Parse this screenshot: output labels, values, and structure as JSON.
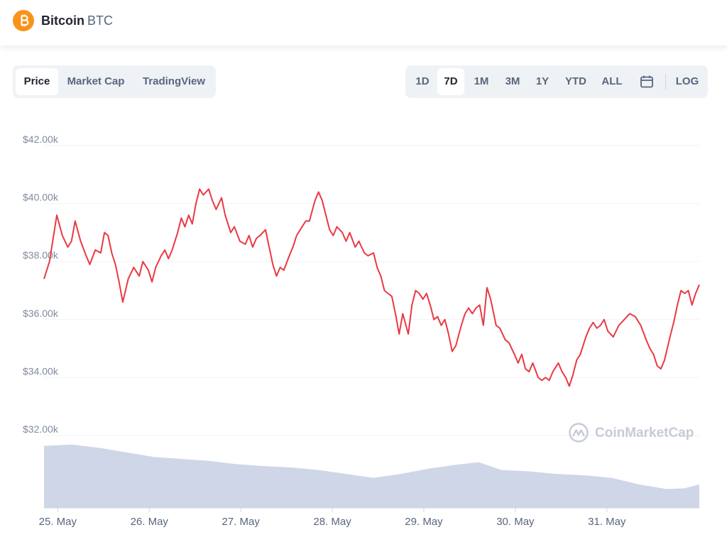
{
  "header": {
    "coin_name": "Bitcoin",
    "coin_symbol": "BTC"
  },
  "chart_tabs": [
    "Price",
    "Market Cap",
    "TradingView"
  ],
  "active_chart_tab": "Price",
  "range_tabs": [
    "1D",
    "7D",
    "1M",
    "3M",
    "1Y",
    "YTD",
    "ALL"
  ],
  "active_range_tab": "7D",
  "log_label": "LOG",
  "watermark": "CoinMarketCap",
  "colors": {
    "line": "#ea3943",
    "volume": "#cfd6e7",
    "accent": "#f7931a"
  },
  "icons": {
    "coin": "bitcoin-logo-icon",
    "calendar": "calendar-icon",
    "watermark": "coinmarketcap-logo-icon"
  },
  "chart_data": {
    "type": "line",
    "ylim": [
      32000,
      42000
    ],
    "y_ticks": [
      32000,
      34000,
      36000,
      38000,
      40000,
      42000
    ],
    "y_tick_labels": [
      "$32.00k",
      "$34.00k",
      "$36.00k",
      "$38.00k",
      "$40.00k",
      "$42.00k"
    ],
    "x_range": [
      0,
      7
    ],
    "x_ticks": [
      0.15,
      1.15,
      2.15,
      3.15,
      4.15,
      5.15,
      6.15
    ],
    "x_tick_labels": [
      "25. May",
      "26. May",
      "27. May",
      "28. May",
      "29. May",
      "30. May",
      "31. May"
    ],
    "series": [
      {
        "values": [
          [
            0.0,
            37400
          ],
          [
            0.06,
            38000
          ],
          [
            0.14,
            39600
          ],
          [
            0.2,
            38900
          ],
          [
            0.26,
            38500
          ],
          [
            0.3,
            38700
          ],
          [
            0.34,
            39400
          ],
          [
            0.4,
            38700
          ],
          [
            0.46,
            38200
          ],
          [
            0.5,
            37900
          ],
          [
            0.56,
            38400
          ],
          [
            0.62,
            38300
          ],
          [
            0.66,
            39000
          ],
          [
            0.7,
            38900
          ],
          [
            0.74,
            38300
          ],
          [
            0.78,
            37900
          ],
          [
            0.82,
            37300
          ],
          [
            0.86,
            36600
          ],
          [
            0.92,
            37400
          ],
          [
            0.98,
            37800
          ],
          [
            1.04,
            37500
          ],
          [
            1.08,
            38000
          ],
          [
            1.14,
            37700
          ],
          [
            1.18,
            37300
          ],
          [
            1.22,
            37800
          ],
          [
            1.28,
            38200
          ],
          [
            1.32,
            38400
          ],
          [
            1.36,
            38100
          ],
          [
            1.4,
            38400
          ],
          [
            1.46,
            39000
          ],
          [
            1.5,
            39500
          ],
          [
            1.54,
            39200
          ],
          [
            1.58,
            39600
          ],
          [
            1.62,
            39300
          ],
          [
            1.66,
            40000
          ],
          [
            1.7,
            40500
          ],
          [
            1.74,
            40300
          ],
          [
            1.8,
            40500
          ],
          [
            1.84,
            40100
          ],
          [
            1.88,
            39800
          ],
          [
            1.94,
            40200
          ],
          [
            1.98,
            39600
          ],
          [
            2.04,
            39000
          ],
          [
            2.08,
            39200
          ],
          [
            2.14,
            38700
          ],
          [
            2.2,
            38600
          ],
          [
            2.24,
            38900
          ],
          [
            2.28,
            38500
          ],
          [
            2.32,
            38800
          ],
          [
            2.36,
            38900
          ],
          [
            2.42,
            39100
          ],
          [
            2.46,
            38500
          ],
          [
            2.5,
            37900
          ],
          [
            2.54,
            37500
          ],
          [
            2.58,
            37800
          ],
          [
            2.62,
            37700
          ],
          [
            2.68,
            38200
          ],
          [
            2.72,
            38500
          ],
          [
            2.76,
            38900
          ],
          [
            2.82,
            39200
          ],
          [
            2.86,
            39400
          ],
          [
            2.9,
            39400
          ],
          [
            2.96,
            40100
          ],
          [
            3.0,
            40400
          ],
          [
            3.04,
            40100
          ],
          [
            3.08,
            39600
          ],
          [
            3.12,
            39100
          ],
          [
            3.16,
            38900
          ],
          [
            3.2,
            39200
          ],
          [
            3.26,
            39000
          ],
          [
            3.3,
            38700
          ],
          [
            3.34,
            39000
          ],
          [
            3.4,
            38500
          ],
          [
            3.44,
            38700
          ],
          [
            3.5,
            38300
          ],
          [
            3.54,
            38200
          ],
          [
            3.6,
            38300
          ],
          [
            3.64,
            37800
          ],
          [
            3.68,
            37500
          ],
          [
            3.72,
            37000
          ],
          [
            3.76,
            36900
          ],
          [
            3.8,
            36800
          ],
          [
            3.84,
            36200
          ],
          [
            3.88,
            35500
          ],
          [
            3.92,
            36200
          ],
          [
            3.98,
            35500
          ],
          [
            4.02,
            36500
          ],
          [
            4.06,
            37000
          ],
          [
            4.1,
            36900
          ],
          [
            4.14,
            36700
          ],
          [
            4.18,
            36900
          ],
          [
            4.22,
            36500
          ],
          [
            4.26,
            36000
          ],
          [
            4.3,
            36100
          ],
          [
            4.34,
            35800
          ],
          [
            4.38,
            36000
          ],
          [
            4.42,
            35500
          ],
          [
            4.46,
            34900
          ],
          [
            4.5,
            35100
          ],
          [
            4.56,
            35800
          ],
          [
            4.6,
            36200
          ],
          [
            4.64,
            36400
          ],
          [
            4.68,
            36200
          ],
          [
            4.72,
            36400
          ],
          [
            4.76,
            36500
          ],
          [
            4.8,
            35800
          ],
          [
            4.84,
            37100
          ],
          [
            4.88,
            36700
          ],
          [
            4.94,
            35800
          ],
          [
            4.98,
            35700
          ],
          [
            5.04,
            35300
          ],
          [
            5.08,
            35200
          ],
          [
            5.14,
            34800
          ],
          [
            5.18,
            34500
          ],
          [
            5.22,
            34800
          ],
          [
            5.26,
            34300
          ],
          [
            5.3,
            34200
          ],
          [
            5.34,
            34500
          ],
          [
            5.4,
            34000
          ],
          [
            5.44,
            33900
          ],
          [
            5.48,
            34000
          ],
          [
            5.52,
            33900
          ],
          [
            5.56,
            34200
          ],
          [
            5.62,
            34500
          ],
          [
            5.66,
            34200
          ],
          [
            5.7,
            34000
          ],
          [
            5.74,
            33700
          ],
          [
            5.78,
            34100
          ],
          [
            5.82,
            34600
          ],
          [
            5.86,
            34800
          ],
          [
            5.92,
            35400
          ],
          [
            5.96,
            35700
          ],
          [
            6.0,
            35900
          ],
          [
            6.04,
            35700
          ],
          [
            6.08,
            35800
          ],
          [
            6.12,
            36000
          ],
          [
            6.16,
            35600
          ],
          [
            6.22,
            35400
          ],
          [
            6.28,
            35800
          ],
          [
            6.34,
            36000
          ],
          [
            6.4,
            36200
          ],
          [
            6.46,
            36100
          ],
          [
            6.52,
            35800
          ],
          [
            6.58,
            35300
          ],
          [
            6.62,
            35000
          ],
          [
            6.66,
            34800
          ],
          [
            6.7,
            34400
          ],
          [
            6.74,
            34300
          ],
          [
            6.78,
            34600
          ],
          [
            6.84,
            35400
          ],
          [
            6.88,
            35900
          ],
          [
            6.92,
            36500
          ],
          [
            6.96,
            37000
          ],
          [
            7.0,
            36900
          ],
          [
            7.04,
            37000
          ],
          [
            7.08,
            36500
          ],
          [
            7.12,
            36900
          ],
          [
            7.16,
            37200
          ]
        ]
      }
    ],
    "volume": {
      "values": [
        [
          0.0,
          0.95
        ],
        [
          0.3,
          0.97
        ],
        [
          0.6,
          0.92
        ],
        [
          0.9,
          0.85
        ],
        [
          1.2,
          0.78
        ],
        [
          1.5,
          0.75
        ],
        [
          1.8,
          0.72
        ],
        [
          2.1,
          0.67
        ],
        [
          2.4,
          0.64
        ],
        [
          2.7,
          0.62
        ],
        [
          3.0,
          0.58
        ],
        [
          3.3,
          0.52
        ],
        [
          3.6,
          0.46
        ],
        [
          3.9,
          0.52
        ],
        [
          4.2,
          0.6
        ],
        [
          4.5,
          0.66
        ],
        [
          4.75,
          0.7
        ],
        [
          5.0,
          0.58
        ],
        [
          5.3,
          0.56
        ],
        [
          5.6,
          0.52
        ],
        [
          5.9,
          0.5
        ],
        [
          6.2,
          0.46
        ],
        [
          6.5,
          0.36
        ],
        [
          6.8,
          0.29
        ],
        [
          7.0,
          0.3
        ],
        [
          7.16,
          0.36
        ]
      ]
    }
  }
}
